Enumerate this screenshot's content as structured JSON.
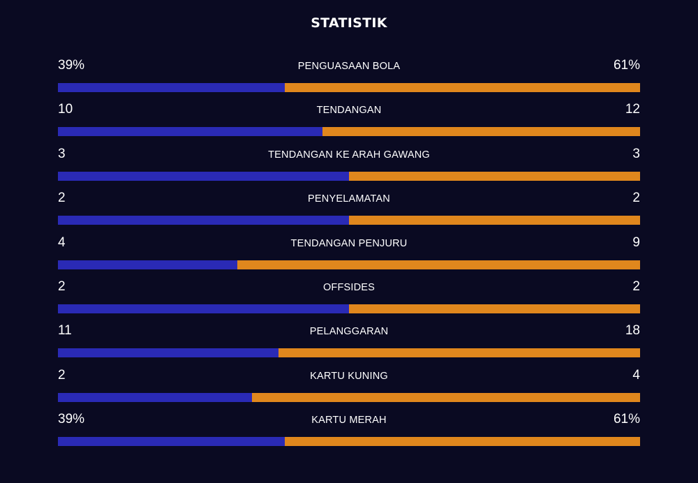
{
  "title": "STATISTIK",
  "colors": {
    "background": "#0a0a22",
    "home": "#2a2ab5",
    "away": "#e0871d"
  },
  "stats": [
    {
      "label": "PENGUASAAN BOLA",
      "home": "39%",
      "away": "61%",
      "home_share": 0.39
    },
    {
      "label": "TENDANGAN",
      "home": "10",
      "away": "12",
      "home_share": 0.4545
    },
    {
      "label": "TENDANGAN KE ARAH GAWANG",
      "home": "3",
      "away": "3",
      "home_share": 0.5
    },
    {
      "label": "PENYELAMATAN",
      "home": "2",
      "away": "2",
      "home_share": 0.5
    },
    {
      "label": "TENDANGAN PENJURU",
      "home": "4",
      "away": "9",
      "home_share": 0.3077
    },
    {
      "label": "OFFSIDES",
      "home": "2",
      "away": "2",
      "home_share": 0.5
    },
    {
      "label": "PELANGGARAN",
      "home": "11",
      "away": "18",
      "home_share": 0.3793
    },
    {
      "label": "KARTU KUNING",
      "home": "2",
      "away": "4",
      "home_share": 0.3333
    },
    {
      "label": "KARTU MERAH",
      "home": "39%",
      "away": "61%",
      "home_share": 0.39
    }
  ]
}
